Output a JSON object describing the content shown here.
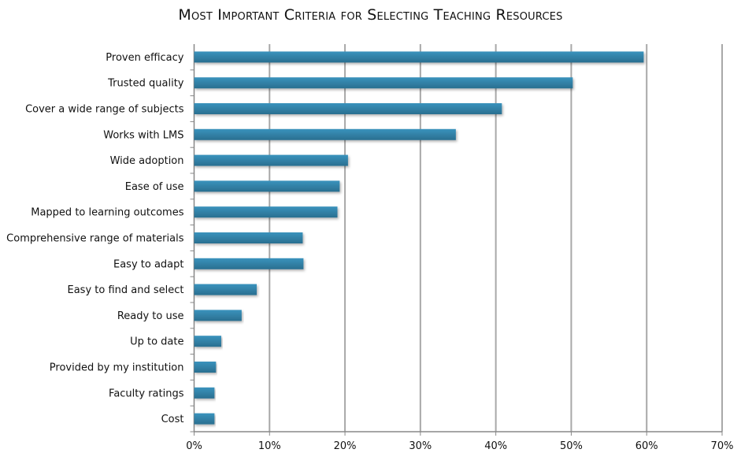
{
  "chart_data": {
    "type": "bar",
    "orientation": "horizontal",
    "title": "Most Important Criteria for Selecting Teaching Resources",
    "xlabel": "",
    "ylabel": "",
    "categories": [
      "Proven efficacy",
      "Trusted quality",
      "Cover a wide range of subjects",
      "Works with LMS",
      "Wide adoption",
      "Ease of use",
      "Mapped to learning outcomes",
      "Comprehensive range of materials",
      "Easy to adapt",
      "Easy to find and select",
      "Ready to use",
      "Up to date",
      "Provided by my institution",
      "Faculty ratings",
      "Cost"
    ],
    "values": [
      59.6,
      50.2,
      40.8,
      34.7,
      20.4,
      19.3,
      19.0,
      14.4,
      14.5,
      8.3,
      6.3,
      3.6,
      2.9,
      2.7,
      2.7
    ],
    "xlim": [
      0,
      70
    ],
    "xticks": [
      "0%",
      "10%",
      "20%",
      "30%",
      "40%",
      "50%",
      "60%",
      "70%"
    ],
    "grid": "vertical",
    "legend": "none",
    "bar_color": "#2f86ad"
  }
}
